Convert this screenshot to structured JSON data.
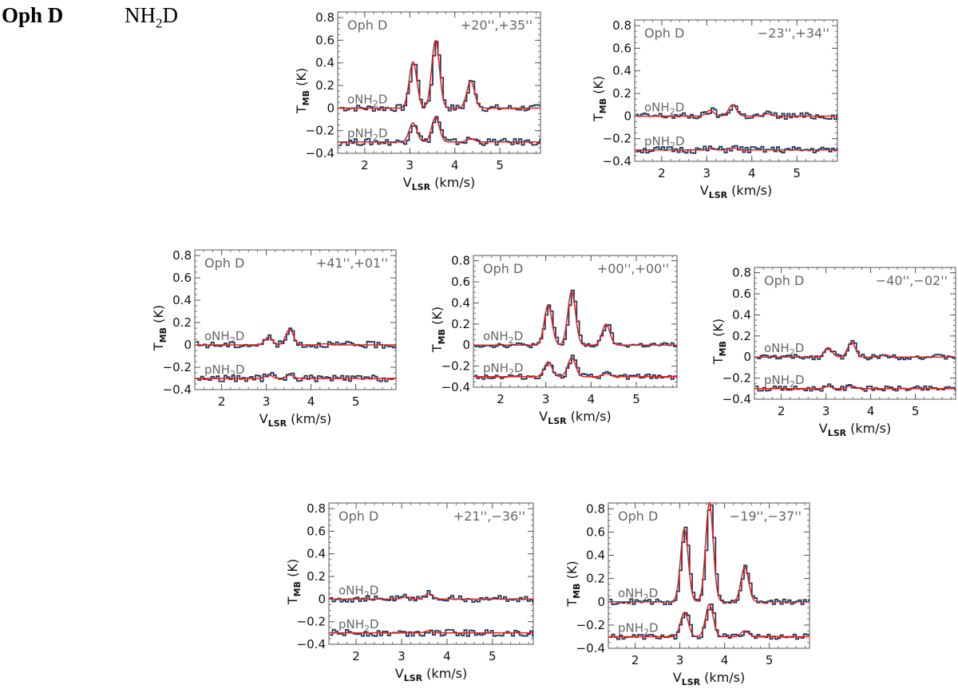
{
  "header": {
    "source": "Oph D",
    "molecule_main": "NH",
    "molecule_sub": "2",
    "molecule_tail": "D"
  },
  "colors": {
    "data": "#1f3a5f",
    "fit": "#e8201c",
    "axis": "#555555",
    "label": "#666666"
  },
  "chart_data": [
    {
      "type": "line",
      "title": "Oph D",
      "offset": "+20'',+35''",
      "xlabel": "V_LSR (km/s)",
      "ylabel": "T_MB (K)",
      "xlim": [
        1.4,
        5.9
      ],
      "ylim": [
        -0.4,
        0.85
      ],
      "xticks": [
        2,
        3,
        4,
        5
      ],
      "yticks": [
        -0.4,
        -0.2,
        0,
        0.2,
        0.4,
        0.6,
        0.8
      ],
      "series": [
        {
          "name": "oNH2D",
          "baseline": 0.0,
          "peaks": [
            {
              "v": 3.07,
              "amp": 0.41
            },
            {
              "v": 3.57,
              "amp": 0.6
            },
            {
              "v": 4.35,
              "amp": 0.24
            }
          ],
          "noise": 0.015
        },
        {
          "name": "pNH2D",
          "baseline": -0.3,
          "peaks": [
            {
              "v": 3.07,
              "amp": 0.17
            },
            {
              "v": 3.57,
              "amp": 0.22
            },
            {
              "v": 4.35,
              "amp": 0.03
            }
          ],
          "noise": 0.015
        }
      ]
    },
    {
      "type": "line",
      "title": "Oph D",
      "offset": "−23'',+34''",
      "xlabel": "V_LSR (km/s)",
      "ylabel": "T_MB (K)",
      "xlim": [
        1.4,
        5.9
      ],
      "ylim": [
        -0.4,
        0.85
      ],
      "xticks": [
        2,
        3,
        4,
        5
      ],
      "yticks": [
        -0.4,
        -0.2,
        0,
        0.2,
        0.4,
        0.6,
        0.8
      ],
      "series": [
        {
          "name": "oNH2D",
          "baseline": 0.0,
          "peaks": [
            {
              "v": 3.07,
              "amp": 0.05
            },
            {
              "v": 3.57,
              "amp": 0.1
            },
            {
              "v": 4.35,
              "amp": 0.02
            }
          ],
          "noise": 0.015
        },
        {
          "name": "pNH2D",
          "baseline": -0.3,
          "peaks": [
            {
              "v": 3.07,
              "amp": 0.01
            },
            {
              "v": 3.57,
              "amp": 0.02
            }
          ],
          "noise": 0.015
        }
      ]
    },
    {
      "type": "line",
      "title": "Oph D",
      "offset": "+41'',+01''",
      "xlabel": "V_LSR (km/s)",
      "ylabel": "T_MB (K)",
      "xlim": [
        1.4,
        5.9
      ],
      "ylim": [
        -0.4,
        0.85
      ],
      "xticks": [
        2,
        3,
        4,
        5
      ],
      "yticks": [
        -0.4,
        -0.2,
        0,
        0.2,
        0.4,
        0.6,
        0.8
      ],
      "series": [
        {
          "name": "oNH2D",
          "baseline": 0.0,
          "peaks": [
            {
              "v": 3.05,
              "amp": 0.07
            },
            {
              "v": 3.52,
              "amp": 0.14
            },
            {
              "v": 4.3,
              "amp": 0.01
            }
          ],
          "noise": 0.015
        },
        {
          "name": "pNH2D",
          "baseline": -0.3,
          "peaks": [
            {
              "v": 3.05,
              "amp": 0.03
            },
            {
              "v": 3.52,
              "amp": 0.03
            }
          ],
          "noise": 0.015
        }
      ]
    },
    {
      "type": "line",
      "title": "Oph D",
      "offset": "+00'',+00''",
      "xlabel": "V_LSR (km/s)",
      "ylabel": "T_MB (K)",
      "xlim": [
        1.4,
        5.9
      ],
      "ylim": [
        -0.4,
        0.85
      ],
      "xticks": [
        2,
        3,
        4,
        5
      ],
      "yticks": [
        -0.4,
        -0.2,
        0,
        0.2,
        0.4,
        0.6,
        0.8
      ],
      "series": [
        {
          "name": "oNH2D",
          "baseline": 0.0,
          "peaks": [
            {
              "v": 3.05,
              "amp": 0.38
            },
            {
              "v": 3.57,
              "amp": 0.51
            },
            {
              "v": 4.33,
              "amp": 0.2
            }
          ],
          "noise": 0.012
        },
        {
          "name": "pNH2D",
          "baseline": -0.3,
          "peaks": [
            {
              "v": 3.05,
              "amp": 0.14
            },
            {
              "v": 3.57,
              "amp": 0.18
            },
            {
              "v": 4.33,
              "amp": 0.03
            }
          ],
          "noise": 0.012
        }
      ]
    },
    {
      "type": "line",
      "title": "Oph D",
      "offset": "−40'',−02''",
      "xlabel": "V_LSR (km/s)",
      "ylabel": "T_MB (K)",
      "xlim": [
        1.4,
        5.9
      ],
      "ylim": [
        -0.4,
        0.85
      ],
      "xticks": [
        2,
        3,
        4,
        5
      ],
      "yticks": [
        -0.4,
        -0.2,
        0,
        0.2,
        0.4,
        0.6,
        0.8
      ],
      "series": [
        {
          "name": "oNH2D",
          "baseline": 0.0,
          "peaks": [
            {
              "v": 3.05,
              "amp": 0.09
            },
            {
              "v": 3.57,
              "amp": 0.14
            },
            {
              "v": 4.33,
              "amp": 0.02
            }
          ],
          "noise": 0.012
        },
        {
          "name": "pNH2D",
          "baseline": -0.3,
          "peaks": [
            {
              "v": 3.05,
              "amp": 0.02
            },
            {
              "v": 3.57,
              "amp": 0.03
            }
          ],
          "noise": 0.012
        }
      ]
    },
    {
      "type": "line",
      "title": "Oph D",
      "offset": "+21'',−36''",
      "xlabel": "V_LSR (km/s)",
      "ylabel": "T_MB (K)",
      "xlim": [
        1.4,
        5.9
      ],
      "ylim": [
        -0.4,
        0.85
      ],
      "xticks": [
        2,
        3,
        4,
        5
      ],
      "yticks": [
        -0.4,
        -0.2,
        0,
        0.2,
        0.4,
        0.6,
        0.8
      ],
      "series": [
        {
          "name": "oNH2D",
          "baseline": 0.0,
          "peaks": [
            {
              "v": 3.1,
              "amp": 0.02
            },
            {
              "v": 3.6,
              "amp": 0.05
            }
          ],
          "noise": 0.015
        },
        {
          "name": "pNH2D",
          "baseline": -0.3,
          "peaks": [
            {
              "v": 3.6,
              "amp": 0.02
            }
          ],
          "noise": 0.015
        }
      ]
    },
    {
      "type": "line",
      "title": "Oph D",
      "offset": "−19'',−37''",
      "xlabel": "V_LSR (km/s)",
      "ylabel": "T_MB (K)",
      "xlim": [
        1.4,
        5.9
      ],
      "ylim": [
        -0.4,
        0.85
      ],
      "xticks": [
        2,
        3,
        4,
        5
      ],
      "yticks": [
        -0.4,
        -0.2,
        0,
        0.2,
        0.4,
        0.6,
        0.8
      ],
      "series": [
        {
          "name": "oNH2D",
          "baseline": 0.0,
          "peaks": [
            {
              "v": 3.1,
              "amp": 0.63
            },
            {
              "v": 3.66,
              "amp": 0.85
            },
            {
              "v": 4.45,
              "amp": 0.3
            }
          ],
          "noise": 0.012
        },
        {
          "name": "pNH2D",
          "baseline": -0.3,
          "peaks": [
            {
              "v": 3.1,
              "amp": 0.21
            },
            {
              "v": 3.66,
              "amp": 0.28
            },
            {
              "v": 4.45,
              "amp": 0.05
            }
          ],
          "noise": 0.012
        }
      ]
    }
  ]
}
